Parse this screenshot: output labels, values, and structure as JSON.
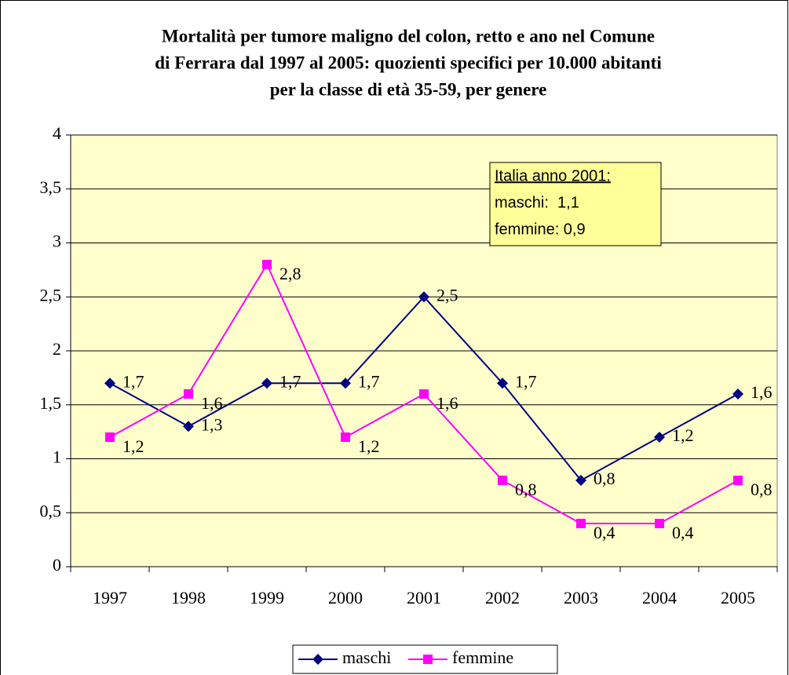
{
  "chart_data": {
    "type": "line",
    "title": [
      "Mortalità per tumore maligno del colon, retto e ano nel Comune",
      "di Ferrara dal 1997 al 2005: quozienti specifici per 10.000 abitanti",
      "per la classe di età 35-59, per genere"
    ],
    "categories": [
      "1997",
      "1998",
      "1999",
      "2000",
      "2001",
      "2002",
      "2003",
      "2004",
      "2005"
    ],
    "series": [
      {
        "name": "maschi",
        "color": "#000080",
        "marker": "diamond",
        "values": [
          1.7,
          1.3,
          1.7,
          1.7,
          2.5,
          1.7,
          0.8,
          1.2,
          1.6
        ],
        "value_labels": [
          "1,7",
          "1,3",
          "1,7",
          "1,7",
          "2,5",
          "1,7",
          "0,8",
          "1,2",
          "1,6"
        ]
      },
      {
        "name": "femmine",
        "color": "#ff00ff",
        "marker": "square",
        "values": [
          1.2,
          1.6,
          2.8,
          1.2,
          1.6,
          0.8,
          0.4,
          0.4,
          0.8
        ],
        "value_labels": [
          "1,2",
          "1,6",
          "2,8",
          "1,2",
          "1,6",
          "0,8",
          "0,4",
          "0,4",
          "0,8"
        ]
      }
    ],
    "ylim": [
      0,
      4
    ],
    "yticks": [
      0,
      {
        "value": 0.5,
        "label": "0,5"
      },
      1,
      {
        "value": 1.5,
        "label": "1,5"
      },
      2,
      {
        "value": 2.5,
        "label": "2,5"
      },
      3,
      {
        "value": 3.5,
        "label": "3,5"
      },
      4
    ],
    "grid": true,
    "legend": "bottom",
    "annotation": [
      "Italia anno 2001:",
      "maschi:  1,1",
      "femmine: 0,9"
    ]
  }
}
